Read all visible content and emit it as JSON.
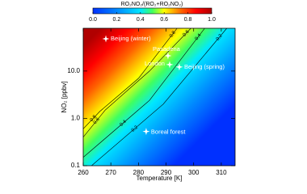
{
  "chart_data": {
    "type": "heatmap",
    "colorbar_title": "RO₂NO₂/(RO₂+RO₂NO₂)",
    "colorbar_lim": [
      0,
      1
    ],
    "colorbar_ticks": [
      {
        "value": 0,
        "label": "0.0"
      },
      0.2,
      0.4,
      0.6,
      0.8,
      {
        "value": 1,
        "label": "1.0"
      }
    ],
    "x_label": "Temperature [K]",
    "y_label": "NO₂ [ppbv]",
    "xlim": [
      260,
      315
    ],
    "xticks": [
      260,
      270,
      280,
      290,
      300,
      310
    ],
    "ylim": [
      0.1,
      80
    ],
    "yticks": [
      {
        "value": 0.1,
        "label": "0.1"
      },
      {
        "value": 1,
        "label": "1.0"
      },
      {
        "value": 10,
        "label": "10.0"
      }
    ],
    "log_y": true,
    "contours": [
      {
        "level": 0.8,
        "x": [
          260,
          266,
          280,
          294
        ],
        "y": [
          0.6,
          1.4,
          7,
          80
        ]
      },
      {
        "level": 0.6,
        "x": [
          260,
          268,
          284,
          299
        ],
        "y": [
          0.4,
          1.5,
          10,
          80
        ]
      },
      {
        "level": 0.4,
        "x": [
          260,
          284,
          304
        ],
        "y": [
          0.15,
          2.4,
          80
        ]
      },
      {
        "level": 0.2,
        "x": [
          263,
          289,
          312
        ],
        "y": [
          0.1,
          2.0,
          80
        ]
      }
    ],
    "points": {
      "labels": [
        "Beijing (winter)",
        "Pasadena",
        "London",
        "Beijing (spring)",
        "Boreal forest"
      ],
      "x": [
        268.2,
        290.7,
        291.3,
        294.8,
        282.8
      ],
      "y": [
        48,
        21,
        13.7,
        12.2,
        0.53
      ],
      "color": "#ffffff"
    }
  }
}
